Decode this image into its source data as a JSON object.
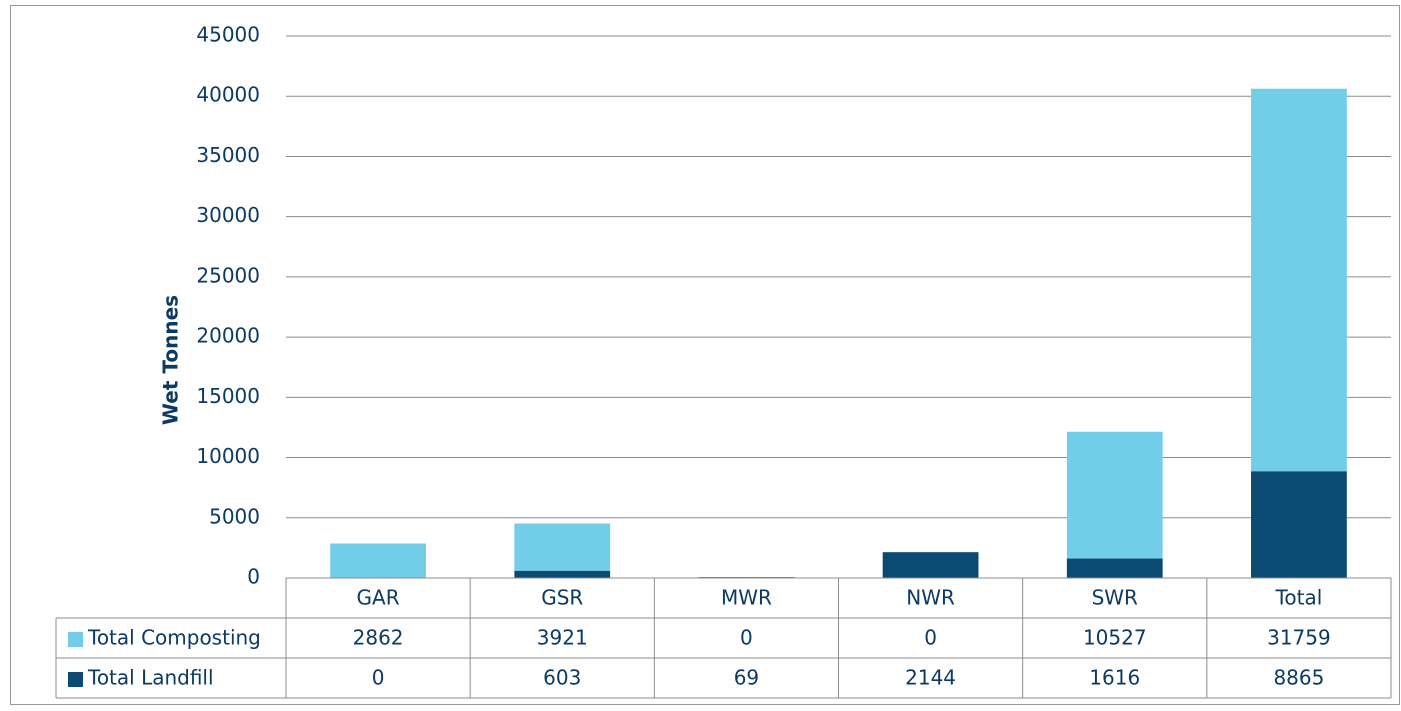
{
  "chart_data": {
    "type": "bar",
    "stacked": true,
    "y_label": "Wet Tonnes",
    "categories": [
      "GAR",
      "GSR",
      "MWR",
      "NWR",
      "SWR",
      "Total"
    ],
    "series": [
      {
        "name": "Total Composting",
        "color": "#72cde9",
        "values": [
          2862,
          3921,
          0,
          0,
          10527,
          31759
        ]
      },
      {
        "name": "Total Landfill",
        "color": "#0b4a73",
        "values": [
          0,
          603,
          69,
          2144,
          1616,
          8865
        ]
      }
    ],
    "ylim": [
      0,
      45000
    ],
    "yticks": [
      0,
      5000,
      10000,
      15000,
      20000,
      25000,
      30000,
      35000,
      40000,
      45000
    ],
    "grid": true
  }
}
